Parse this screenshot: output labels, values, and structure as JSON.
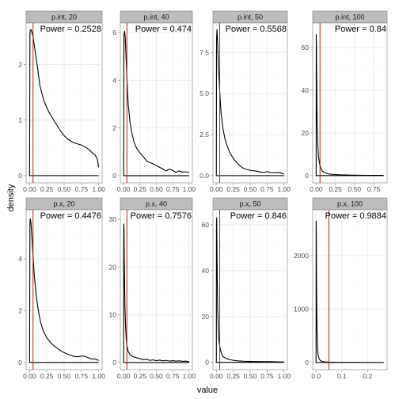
{
  "figure": {
    "xlabel": "value",
    "ylabel": "density",
    "ref_line_color": "#b22222",
    "line_color": "#000000",
    "strip_color": "#bdbdbd"
  },
  "chart_data": [
    {
      "type": "line",
      "title": "p.int,  20",
      "annotation": "Power =  0.2528",
      "ref_x": 0.05,
      "xlim": [
        -0.05,
        1.05
      ],
      "ylim": [
        -0.13,
        2.75
      ],
      "xticks": [
        0,
        0.25,
        0.5,
        0.75,
        1
      ],
      "xtick_labels": [
        "0.00",
        "0.25",
        "0.50",
        "0.75",
        "1.00"
      ],
      "yticks": [
        0,
        1,
        2
      ],
      "ytick_labels": [
        "0",
        "1",
        "2"
      ],
      "series": [
        {
          "x": [
            0,
            0.005,
            0.01,
            0.02,
            0.03,
            0.05,
            0.08,
            0.12,
            0.15,
            0.2,
            0.25,
            0.3,
            0.35,
            0.4,
            0.45,
            0.5,
            0.55,
            0.6,
            0.65,
            0.7,
            0.75,
            0.8,
            0.85,
            0.9,
            0.95,
            0.98,
            1.0
          ],
          "y": [
            0,
            2.55,
            2.62,
            2.63,
            2.6,
            2.5,
            2.25,
            1.9,
            1.62,
            1.38,
            1.22,
            1.1,
            1.0,
            0.9,
            0.8,
            0.72,
            0.66,
            0.62,
            0.59,
            0.57,
            0.55,
            0.52,
            0.48,
            0.42,
            0.37,
            0.3,
            0.15
          ]
        }
      ]
    },
    {
      "type": "line",
      "title": "p.int,  40",
      "annotation": "Power =  0.474",
      "ref_x": 0.05,
      "xlim": [
        -0.05,
        1.05
      ],
      "ylim": [
        -0.3,
        6.4
      ],
      "xticks": [
        0,
        0.25,
        0.5,
        0.75,
        1
      ],
      "xtick_labels": [
        "0.00",
        "0.25",
        "0.50",
        "0.75",
        "1.00"
      ],
      "yticks": [
        0,
        2,
        4,
        6
      ],
      "ytick_labels": [
        "0",
        "2",
        "4",
        "6"
      ],
      "series": [
        {
          "x": [
            0,
            0.005,
            0.015,
            0.025,
            0.035,
            0.05,
            0.07,
            0.1,
            0.13,
            0.16,
            0.2,
            0.25,
            0.3,
            0.35,
            0.4,
            0.45,
            0.5,
            0.55,
            0.6,
            0.65,
            0.7,
            0.75,
            0.8,
            0.85,
            0.9,
            0.95,
            1.0
          ],
          "y": [
            0,
            5.9,
            6.05,
            5.8,
            5.1,
            4.1,
            3.0,
            2.2,
            1.75,
            1.4,
            1.15,
            0.95,
            0.8,
            0.62,
            0.55,
            0.5,
            0.42,
            0.35,
            0.28,
            0.2,
            0.28,
            0.22,
            0.14,
            0.2,
            0.15,
            0.16,
            0.14
          ]
        }
      ]
    },
    {
      "type": "line",
      "title": "p.int,  50",
      "annotation": "Power =  0.5568",
      "ref_x": 0.05,
      "xlim": [
        -0.05,
        1.05
      ],
      "ylim": [
        -0.44,
        9.3
      ],
      "xticks": [
        0,
        0.25,
        0.5,
        0.75,
        1
      ],
      "xtick_labels": [
        "0.00",
        "0.25",
        "0.50",
        "0.75",
        "1.00"
      ],
      "yticks": [
        0,
        2.5,
        5,
        7.5
      ],
      "ytick_labels": [
        "0.0",
        "2.5",
        "5.0",
        "7.5"
      ],
      "series": [
        {
          "x": [
            0,
            0.003,
            0.01,
            0.02,
            0.03,
            0.05,
            0.07,
            0.1,
            0.13,
            0.16,
            0.2,
            0.25,
            0.3,
            0.35,
            0.4,
            0.45,
            0.5,
            0.55,
            0.6,
            0.65,
            0.7,
            0.75,
            0.8,
            0.85,
            0.9,
            0.95,
            1.0
          ],
          "y": [
            0,
            8.4,
            8.9,
            8.0,
            6.7,
            5.1,
            3.8,
            2.8,
            2.2,
            1.8,
            1.4,
            1.05,
            0.8,
            0.6,
            0.45,
            0.38,
            0.32,
            0.3,
            0.27,
            0.22,
            0.2,
            0.24,
            0.2,
            0.18,
            0.2,
            0.17,
            0.1
          ]
        }
      ]
    },
    {
      "type": "line",
      "title": "p.int, 100",
      "annotation": "Power =  0.84",
      "ref_x": 0.05,
      "xlim": [
        -0.045,
        0.925
      ],
      "ylim": [
        -3.4,
        71.5
      ],
      "xticks": [
        0,
        0.25,
        0.5,
        0.75
      ],
      "xtick_labels": [
        "0.00",
        "0.25",
        "0.50",
        "0.75"
      ],
      "yticks": [
        0,
        20,
        40,
        60
      ],
      "ytick_labels": [
        "0",
        "20",
        "40",
        "60"
      ],
      "series": [
        {
          "x": [
            0,
            0.001,
            0.004,
            0.008,
            0.012,
            0.02,
            0.03,
            0.045,
            0.06,
            0.08,
            0.1,
            0.15,
            0.2,
            0.3,
            0.4,
            0.5,
            0.6,
            0.7,
            0.8,
            0.88
          ],
          "y": [
            0,
            66,
            60,
            40,
            26,
            15,
            9,
            5.5,
            3.5,
            2.2,
            1.5,
            0.9,
            0.6,
            0.4,
            0.3,
            0.2,
            0.15,
            0.12,
            0.1,
            0.08
          ]
        }
      ]
    },
    {
      "type": "line",
      "title": "p.x,  20",
      "annotation": "Power =  0.4476",
      "ref_x": 0.05,
      "xlim": [
        -0.05,
        1.05
      ],
      "ylim": [
        -0.28,
        5.9
      ],
      "xticks": [
        0,
        0.25,
        0.5,
        0.75,
        1
      ],
      "xtick_labels": [
        "0.00",
        "0.25",
        "0.50",
        "0.75",
        "1.00"
      ],
      "yticks": [
        0,
        2,
        4
      ],
      "ytick_labels": [
        "0",
        "2",
        "4"
      ],
      "series": [
        {
          "x": [
            0,
            0.005,
            0.01,
            0.02,
            0.03,
            0.05,
            0.07,
            0.1,
            0.13,
            0.16,
            0.2,
            0.25,
            0.3,
            0.35,
            0.4,
            0.45,
            0.5,
            0.55,
            0.6,
            0.65,
            0.7,
            0.75,
            0.8,
            0.85,
            0.9,
            0.95,
            1.0
          ],
          "y": [
            0,
            5.35,
            5.55,
            5.4,
            5.0,
            4.1,
            3.3,
            2.5,
            1.95,
            1.55,
            1.2,
            0.95,
            0.78,
            0.65,
            0.55,
            0.45,
            0.38,
            0.32,
            0.27,
            0.23,
            0.22,
            0.25,
            0.24,
            0.18,
            0.14,
            0.13,
            0.08
          ]
        }
      ]
    },
    {
      "type": "line",
      "title": "p.x,  40",
      "annotation": "Power =  0.7576",
      "ref_x": 0.05,
      "xlim": [
        -0.05,
        1.05
      ],
      "ylim": [
        -1.5,
        32
      ],
      "xticks": [
        0,
        0.25,
        0.5,
        0.75,
        1
      ],
      "xtick_labels": [
        "0.00",
        "0.25",
        "0.50",
        "0.75",
        "1.00"
      ],
      "yticks": [
        0,
        10,
        20,
        30
      ],
      "ytick_labels": [
        "0",
        "10",
        "20",
        "30"
      ],
      "series": [
        {
          "x": [
            0,
            0.002,
            0.006,
            0.01,
            0.015,
            0.02,
            0.03,
            0.04,
            0.05,
            0.07,
            0.1,
            0.15,
            0.2,
            0.25,
            0.3,
            0.35,
            0.4,
            0.45,
            0.5,
            0.55,
            0.6,
            0.65,
            0.7,
            0.75,
            0.8,
            0.85,
            0.9,
            0.95,
            1.0
          ],
          "y": [
            0,
            29,
            28,
            22,
            17,
            12,
            7.5,
            5,
            3.6,
            2.3,
            1.6,
            1.2,
            1.0,
            0.8,
            0.6,
            0.7,
            0.45,
            0.55,
            0.4,
            0.5,
            0.35,
            0.45,
            0.3,
            0.4,
            0.3,
            0.35,
            0.25,
            0.3,
            0.2
          ]
        }
      ]
    },
    {
      "type": "line",
      "title": "p.x,  50",
      "annotation": "Power =  0.846",
      "ref_x": 0.05,
      "xlim": [
        -0.05,
        1.05
      ],
      "ylim": [
        -3.2,
        66.5
      ],
      "xticks": [
        0,
        0.25,
        0.5,
        0.75,
        1
      ],
      "xtick_labels": [
        "0.00",
        "0.25",
        "0.50",
        "0.75",
        "1.00"
      ],
      "yticks": [
        0,
        20,
        40,
        60
      ],
      "ytick_labels": [
        "0",
        "20",
        "40",
        "60"
      ],
      "series": [
        {
          "x": [
            0,
            0.002,
            0.005,
            0.01,
            0.015,
            0.02,
            0.03,
            0.04,
            0.06,
            0.08,
            0.1,
            0.15,
            0.2,
            0.25,
            0.3,
            0.4,
            0.5,
            0.6,
            0.7,
            0.8,
            0.9,
            1.0
          ],
          "y": [
            0,
            60,
            63,
            48,
            34,
            24,
            14,
            9,
            5.5,
            3.5,
            2.5,
            1.6,
            1.2,
            0.9,
            0.7,
            0.5,
            0.4,
            0.35,
            0.3,
            0.3,
            0.25,
            0.2
          ]
        }
      ]
    },
    {
      "type": "line",
      "title": "p.x, 100",
      "annotation": "Power =  0.9884",
      "ref_x": 0.05,
      "xlim": [
        -0.013,
        0.276
      ],
      "ylim": [
        -136,
        2860
      ],
      "xticks": [
        0,
        0.1,
        0.2
      ],
      "xtick_labels": [
        "0.0",
        "0.1",
        "0.2"
      ],
      "yticks": [
        0,
        1000,
        2000
      ],
      "ytick_labels": [
        "0",
        "1000",
        "2000"
      ],
      "series": [
        {
          "x": [
            0,
            0.0004,
            0.001,
            0.002,
            0.003,
            0.004,
            0.006,
            0.008,
            0.012,
            0.016,
            0.02,
            0.03,
            0.05,
            0.08,
            0.12,
            0.16,
            0.2,
            0.24,
            0.263
          ],
          "y": [
            0,
            2650,
            2400,
            1500,
            900,
            550,
            260,
            140,
            70,
            40,
            25,
            12,
            6,
            3,
            2,
            1.5,
            1,
            0.8,
            0.5
          ]
        }
      ]
    }
  ]
}
